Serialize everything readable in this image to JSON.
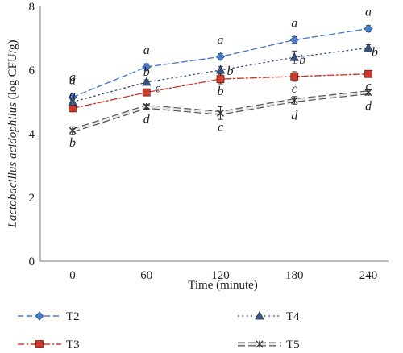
{
  "chart_data": {
    "type": "line",
    "title": "",
    "xlabel": "Time (minute)",
    "ylabel_italic": "Lactobacillus acidophilus",
    "ylabel_unit": " (log CFU/g)",
    "x": [
      0,
      60,
      120,
      180,
      240
    ],
    "x_tick_labels": [
      "0",
      "60",
      "120",
      "180",
      "240"
    ],
    "ylim": [
      0,
      8
    ],
    "y_ticks": [
      0,
      2,
      4,
      6,
      8
    ],
    "grid": false,
    "legend_position": "bottom",
    "series": [
      {
        "name": "T2",
        "values": [
          5.15,
          6.1,
          6.42,
          6.95,
          7.3
        ],
        "errors": [
          0.08,
          0.1,
          0.1,
          0.1,
          0.1
        ],
        "letters": [
          "a",
          "a",
          "a",
          "a",
          "a"
        ],
        "marker": "diamond",
        "color": "#4a7ec8",
        "dash": "7,4"
      },
      {
        "name": "T3",
        "values": [
          4.8,
          5.3,
          5.72,
          5.8,
          5.88
        ],
        "errors": [
          0.08,
          0.1,
          0.15,
          0.15,
          0.1
        ],
        "letters": [
          "a",
          "c",
          "b",
          "c",
          "c"
        ],
        "marker": "square",
        "color": "#cc3b2e",
        "dash": "8,3,2,3"
      },
      {
        "name": "T4",
        "values": [
          5.0,
          5.62,
          6.0,
          6.4,
          6.7
        ],
        "errors": [
          0.08,
          0.08,
          0.12,
          0.2,
          0.1
        ],
        "letters": [
          "a",
          "b",
          "b",
          "b",
          "b"
        ],
        "marker": "triangle",
        "color": "#3a5680",
        "dash": "1.5,4"
      },
      {
        "name": "T5",
        "values": [
          4.1,
          4.85,
          4.65,
          5.05,
          5.3
        ],
        "errors": [
          0.12,
          0.08,
          0.2,
          0.12,
          0.08
        ],
        "letters": [
          "b",
          "d",
          "c",
          "d",
          "d"
        ],
        "marker": "xstar",
        "color": "#333333",
        "dash": "9,4"
      }
    ]
  }
}
